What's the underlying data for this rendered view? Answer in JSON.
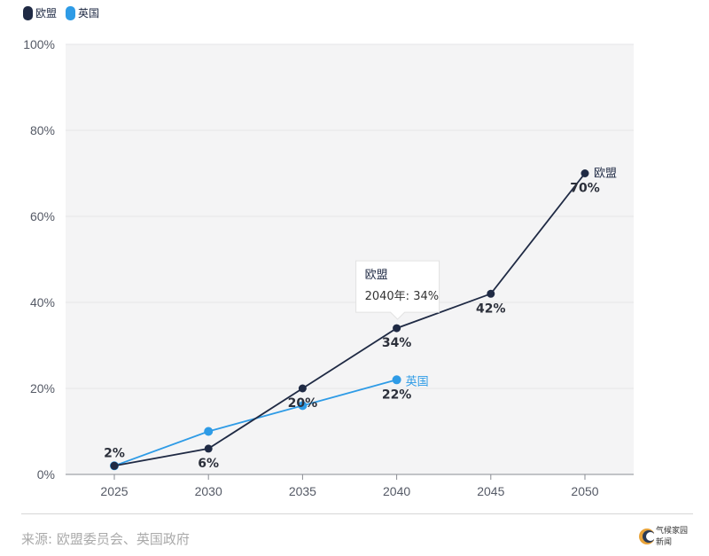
{
  "legend": [
    {
      "name": "欧盟",
      "color": "#1f2a44"
    },
    {
      "name": "英国",
      "color": "#2e9be6"
    }
  ],
  "chart_data": {
    "type": "line",
    "x": [
      2025,
      2030,
      2035,
      2040,
      2045,
      2050
    ],
    "xticks": [
      "2025",
      "2030",
      "2035",
      "2040",
      "2045",
      "2050"
    ],
    "yticks": [
      "0%",
      "20%",
      "40%",
      "60%",
      "80%",
      "100%"
    ],
    "ylim": [
      0,
      100
    ],
    "grid": true,
    "series": [
      {
        "name": "欧盟",
        "color": "#1f2a44",
        "x": [
          2025,
          2030,
          2035,
          2040,
          2045,
          2050
        ],
        "values": [
          2,
          6,
          20,
          34,
          42,
          70
        ],
        "labels": [
          "",
          "6%",
          "20%",
          "34%",
          "42%",
          "70%"
        ]
      },
      {
        "name": "英国",
        "color": "#2e9be6",
        "x": [
          2025,
          2030,
          2035,
          2040
        ],
        "values": [
          2,
          10,
          16,
          22
        ],
        "labels": [
          "2%",
          "",
          "",
          "22%"
        ]
      }
    ],
    "tooltip": {
      "title": "欧盟",
      "text": "2040年: 34%"
    }
  },
  "source": "来源: 欧盟委员会、英国政府",
  "logo": {
    "line1": "气候家园",
    "line2": "新闻"
  }
}
